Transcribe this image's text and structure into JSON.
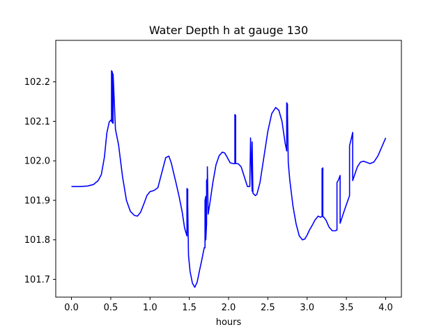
{
  "chart_data": {
    "type": "line",
    "title": "Water Depth h at gauge 130",
    "xlabel": "hours",
    "ylabel": "",
    "xlim": [
      -0.2,
      4.2
    ],
    "ylim": [
      101.655,
      102.305
    ],
    "grid": false,
    "x_ticks": [
      0.0,
      0.5,
      1.0,
      1.5,
      2.0,
      2.5,
      3.0,
      3.5,
      4.0
    ],
    "x_tick_labels": [
      "0.0",
      "0.5",
      "1.0",
      "1.5",
      "2.0",
      "2.5",
      "3.0",
      "3.5",
      "4.0"
    ],
    "y_ticks": [
      101.7,
      101.8,
      101.9,
      102.0,
      102.1,
      102.2
    ],
    "y_tick_labels": [
      "101.7",
      "101.8",
      "101.9",
      "102.0",
      "102.1",
      "102.2"
    ],
    "series": [
      {
        "name": "",
        "color": "#0000ff",
        "x": [
          0.0,
          0.1,
          0.2,
          0.28,
          0.34,
          0.38,
          0.42,
          0.45,
          0.48,
          0.5,
          0.51,
          0.51,
          0.52,
          0.52,
          0.53,
          0.53,
          0.56,
          0.6,
          0.65,
          0.7,
          0.75,
          0.8,
          0.84,
          0.88,
          0.92,
          0.96,
          1.0,
          1.05,
          1.1,
          1.15,
          1.2,
          1.24,
          1.27,
          1.3,
          1.33,
          1.37,
          1.41,
          1.44,
          1.47,
          1.47,
          1.48,
          1.48,
          1.49,
          1.51,
          1.54,
          1.57,
          1.6,
          1.63,
          1.66,
          1.69,
          1.7,
          1.7,
          1.71,
          1.71,
          1.72,
          1.72,
          1.73,
          1.73,
          1.74,
          1.76,
          1.8,
          1.84,
          1.88,
          1.92,
          1.95,
          1.98,
          2.02,
          2.06,
          2.08,
          2.08,
          2.09,
          2.09,
          2.12,
          2.16,
          2.2,
          2.24,
          2.27,
          2.28,
          2.28,
          2.3,
          2.3,
          2.31,
          2.34,
          2.36,
          2.4,
          2.45,
          2.5,
          2.55,
          2.6,
          2.64,
          2.68,
          2.72,
          2.74,
          2.74,
          2.75,
          2.75,
          2.76,
          2.78,
          2.82,
          2.86,
          2.9,
          2.94,
          2.97,
          3.0,
          3.03,
          3.06,
          3.1,
          3.14,
          3.17,
          3.19,
          3.19,
          3.2,
          3.2,
          3.21,
          3.24,
          3.28,
          3.32,
          3.36,
          3.38,
          3.38,
          3.4,
          3.42,
          3.42,
          3.45,
          3.48,
          3.51,
          3.54,
          3.54,
          3.57,
          3.58,
          3.58,
          3.6,
          3.64,
          3.68,
          3.72,
          3.76,
          3.8,
          3.85,
          3.9,
          3.95,
          4.0
        ],
        "y": [
          101.935,
          101.935,
          101.936,
          101.94,
          101.95,
          101.965,
          102.01,
          102.07,
          102.098,
          102.103,
          102.1,
          102.228,
          102.225,
          102.097,
          102.095,
          102.22,
          102.08,
          102.04,
          101.96,
          101.9,
          101.872,
          101.862,
          101.86,
          101.87,
          101.89,
          101.912,
          101.922,
          101.925,
          101.932,
          101.97,
          102.008,
          102.012,
          101.995,
          101.97,
          101.945,
          101.91,
          101.87,
          101.83,
          101.81,
          101.93,
          101.928,
          101.89,
          101.76,
          101.72,
          101.69,
          101.68,
          101.693,
          101.722,
          101.75,
          101.78,
          101.78,
          101.9,
          101.91,
          101.8,
          101.84,
          101.95,
          101.955,
          101.985,
          101.865,
          101.89,
          101.945,
          101.99,
          102.013,
          102.022,
          102.02,
          102.01,
          101.995,
          101.993,
          101.993,
          102.117,
          102.115,
          101.993,
          101.993,
          101.985,
          101.96,
          101.935,
          101.935,
          102.058,
          102.055,
          101.923,
          102.048,
          101.918,
          101.912,
          101.915,
          101.945,
          102.01,
          102.075,
          102.12,
          102.135,
          102.128,
          102.1,
          102.045,
          102.025,
          102.147,
          102.143,
          102.12,
          101.995,
          101.95,
          101.885,
          101.84,
          101.81,
          101.8,
          101.802,
          101.812,
          101.825,
          101.835,
          101.85,
          101.86,
          101.857,
          101.86,
          101.98,
          101.982,
          101.858,
          101.858,
          101.85,
          101.832,
          101.823,
          101.823,
          101.825,
          101.945,
          101.952,
          101.963,
          101.842,
          101.86,
          101.878,
          101.895,
          101.912,
          102.038,
          102.063,
          102.072,
          101.95,
          101.962,
          101.985,
          101.997,
          101.999,
          101.996,
          101.993,
          101.997,
          102.012,
          102.035,
          102.058
        ]
      }
    ]
  }
}
